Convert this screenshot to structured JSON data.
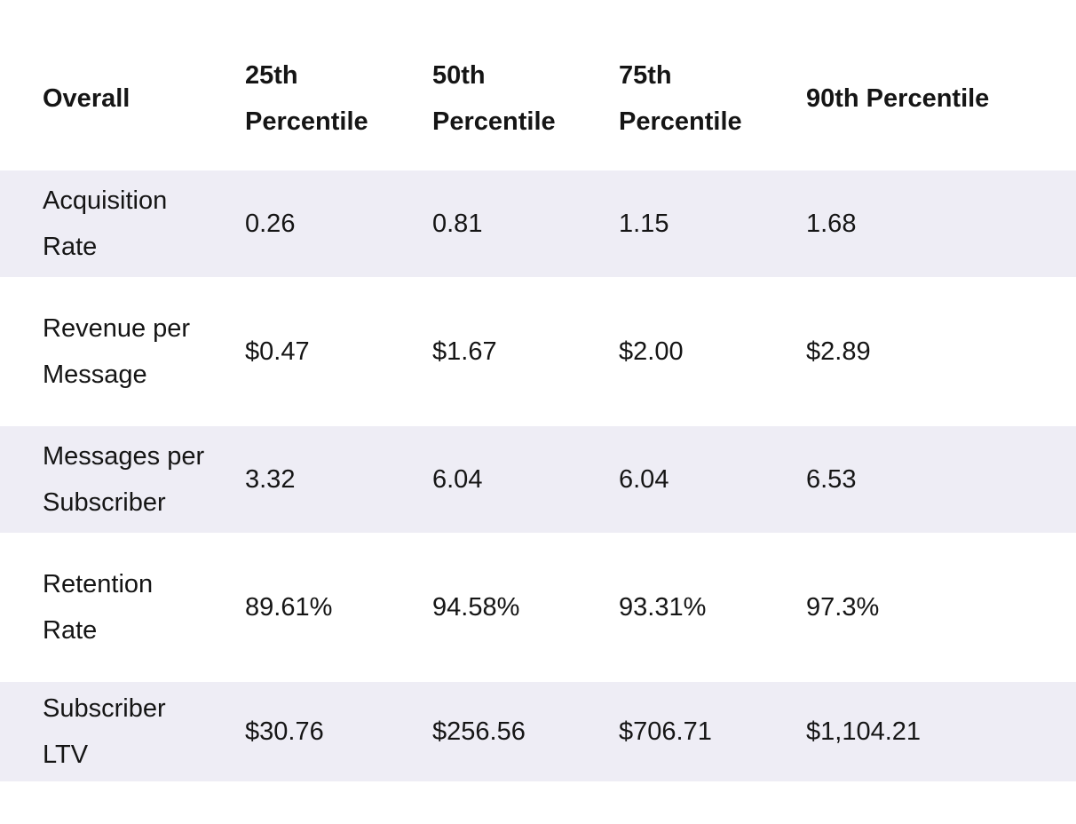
{
  "table": {
    "header": [
      "Overall",
      "25th Percentile",
      "50th Percentile",
      "75th Percentile",
      "90th Percentile"
    ],
    "rows": [
      [
        "Acquisition Rate",
        "0.26",
        "0.81",
        "1.15",
        "1.68"
      ],
      [
        "Revenue per Message",
        "$0.47",
        "$1.67",
        "$2.00",
        "$2.89"
      ],
      [
        "Messages per Subscriber",
        "3.32",
        "6.04",
        "6.04",
        "6.53"
      ],
      [
        "Retention Rate",
        "89.61%",
        "94.58%",
        "93.31%",
        "97.3%"
      ],
      [
        "Subscriber LTV",
        "$30.76",
        "$256.56",
        "$706.71",
        "$1,104.21"
      ]
    ]
  }
}
